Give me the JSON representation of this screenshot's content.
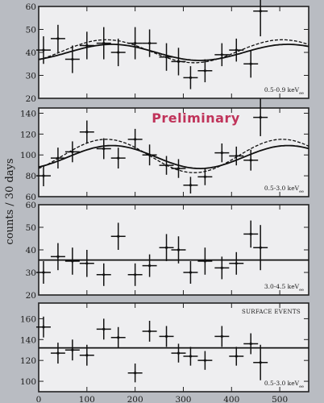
{
  "chart_data": [
    {
      "type": "scatter",
      "ylabel": "counts / 30 days",
      "energy_range": "0.5-0.9 keV",
      "energy_sub": "ee",
      "xlim": [
        0,
        560
      ],
      "ylim": [
        20,
        60
      ],
      "yticks": [
        20,
        30,
        40,
        50,
        60
      ],
      "xticks": [
        0,
        100,
        200,
        300,
        400,
        500
      ],
      "x": [
        10,
        40,
        70,
        100,
        135,
        165,
        200,
        230,
        265,
        290,
        315,
        345,
        380,
        410,
        440,
        460
      ],
      "y": [
        41,
        46,
        37,
        43,
        44,
        40,
        44,
        44,
        38,
        36,
        29,
        32,
        39,
        41,
        35,
        58
      ],
      "yerr": [
        6,
        6,
        6,
        6,
        7,
        6,
        7,
        6,
        6,
        6,
        5,
        5,
        5,
        5,
        6,
        11
      ],
      "xerr": 15,
      "models": [
        {
          "style": "solid",
          "mean": 40,
          "amp": 3.5,
          "phase_day": 152,
          "period": 365
        },
        {
          "style": "dashed",
          "mean": 40.5,
          "amp": 5,
          "phase_day": 140,
          "period": 365
        }
      ]
    },
    {
      "type": "scatter",
      "energy_range": "0.5-3.0 keV",
      "energy_sub": "ee",
      "stamp": "Preliminary",
      "xlim": [
        0,
        560
      ],
      "ylim": [
        60,
        145
      ],
      "yticks": [
        60,
        80,
        100,
        120,
        140
      ],
      "xticks": [
        0,
        100,
        200,
        300,
        400,
        500
      ],
      "x": [
        10,
        40,
        70,
        100,
        135,
        165,
        200,
        230,
        265,
        290,
        315,
        345,
        380,
        410,
        440,
        460
      ],
      "y": [
        80,
        97,
        103,
        122,
        106,
        97,
        115,
        100,
        90,
        87,
        71,
        79,
        102,
        99,
        95,
        136
      ],
      "yerr": [
        10,
        10,
        10,
        11,
        10,
        10,
        10,
        10,
        9,
        9,
        8,
        8,
        9,
        9,
        10,
        18
      ],
      "xerr": 15,
      "models": [
        {
          "style": "solid",
          "mean": 98,
          "amp": 11,
          "phase_day": 152,
          "period": 365
        },
        {
          "style": "dashed",
          "mean": 99,
          "amp": 16,
          "phase_day": 140,
          "period": 365
        }
      ]
    },
    {
      "type": "scatter",
      "energy_range": "3.0-4.5 keV",
      "energy_sub": "ee",
      "xlim": [
        0,
        560
      ],
      "ylim": [
        20,
        60
      ],
      "yticks": [
        20,
        30,
        40,
        50,
        60
      ],
      "xticks": [
        0,
        100,
        200,
        300,
        400,
        500
      ],
      "x": [
        10,
        40,
        70,
        100,
        135,
        165,
        200,
        230,
        265,
        290,
        315,
        345,
        380,
        410,
        440,
        460
      ],
      "y": [
        30,
        37,
        35,
        34,
        29,
        46,
        29,
        33,
        41,
        40,
        30,
        35,
        32,
        34,
        47,
        41
      ],
      "yerr": [
        5,
        6,
        6,
        6,
        5,
        6,
        5,
        5,
        6,
        6,
        5,
        6,
        5,
        5,
        6,
        10
      ],
      "xerr": 15,
      "models": [
        {
          "style": "solid",
          "flat": 35.5
        }
      ]
    },
    {
      "type": "scatter",
      "overlay_title": "SURFACE EVENTS",
      "energy_range": "0.5-3.0 keV",
      "energy_sub": "ee",
      "xlim": [
        0,
        560
      ],
      "ylim": [
        90,
        175
      ],
      "yticks": [
        100,
        120,
        140,
        160
      ],
      "xticks": [
        0,
        100,
        200,
        300,
        400,
        500
      ],
      "xticklabels": [
        "0",
        "100",
        "200",
        "300",
        "400",
        "500"
      ],
      "x": [
        10,
        40,
        70,
        100,
        135,
        165,
        200,
        230,
        265,
        290,
        315,
        345,
        380,
        410,
        440,
        460
      ],
      "y": [
        152,
        127,
        130,
        125,
        150,
        142,
        108,
        148,
        143,
        127,
        124,
        120,
        143,
        124,
        136,
        118
      ],
      "yerr": [
        10,
        10,
        10,
        10,
        10,
        10,
        9,
        10,
        10,
        9,
        9,
        9,
        10,
        9,
        10,
        17
      ],
      "xerr": 15,
      "models": [
        {
          "style": "solid",
          "flat": 132
        }
      ]
    }
  ]
}
